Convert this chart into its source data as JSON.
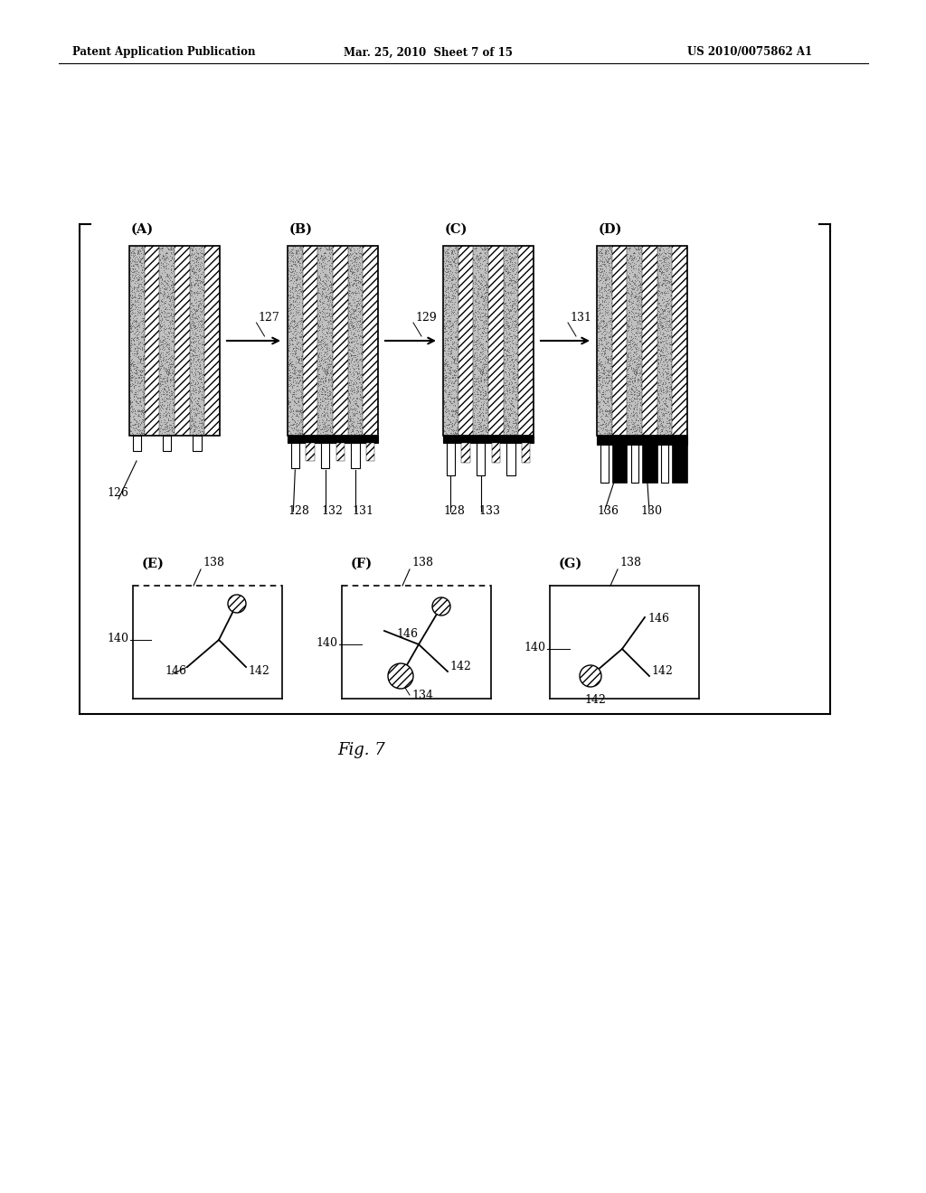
{
  "bg_color": "#ffffff",
  "header_left": "Patent Application Publication",
  "header_mid": "Mar. 25, 2010  Sheet 7 of 15",
  "header_right": "US 2010/0075862 A1",
  "fig_label": "Fig. 7",
  "panels_top": [
    "(A)",
    "(B)",
    "(C)",
    "(D)"
  ],
  "panels_bot": [
    "(E)",
    "(F)",
    "(G)"
  ],
  "arrow_labels": [
    "127",
    "129",
    "131"
  ],
  "labels_B": [
    "128",
    "132",
    "131"
  ],
  "labels_C": [
    "128",
    "133"
  ],
  "labels_D": [
    "136",
    "130"
  ],
  "label_126": "126",
  "label_138": "138",
  "label_140": "140",
  "label_142": "142",
  "label_146": "146",
  "label_134": "134"
}
